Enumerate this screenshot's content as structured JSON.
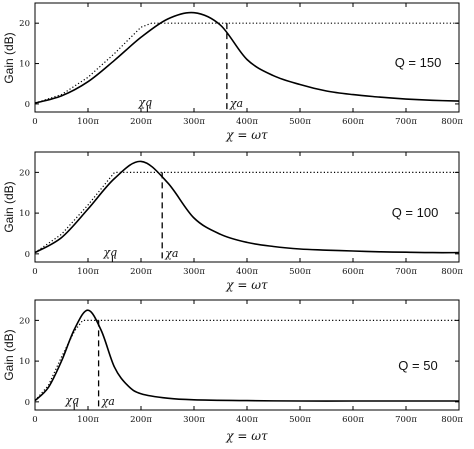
{
  "chart_data": [
    {
      "type": "line",
      "ylabel": "Gain (dB)",
      "xlabel": "χ = ωτ",
      "q_label": "Q = 150",
      "x_ticks": [
        "0",
        "100π",
        "200π",
        "300π",
        "400π",
        "500π",
        "600π",
        "700π",
        "800π"
      ],
      "y_ticks": [
        "0",
        "10",
        "20"
      ],
      "xlim": [
        0,
        800
      ],
      "ylim": [
        -2,
        25
      ],
      "x_unit": "π",
      "chi_q": {
        "label": "χq",
        "x": 212
      },
      "chi_a": {
        "label": "χa",
        "x": 362
      },
      "asymptote_level": 20,
      "series": [
        {
          "style": "solid",
          "x": [
            0,
            50,
            100,
            150,
            200,
            250,
            300,
            350,
            400,
            450,
            500,
            550,
            600,
            650,
            700,
            750,
            800
          ],
          "y": [
            0.2,
            2.0,
            5.5,
            10.8,
            16.5,
            21.0,
            22.6,
            19.5,
            11.0,
            7.0,
            4.8,
            3.2,
            2.3,
            1.7,
            1.2,
            0.9,
            0.7
          ]
        },
        {
          "style": "dotted",
          "x": [
            0,
            50,
            100,
            150,
            200,
            220,
            800
          ],
          "y": [
            0.2,
            2.3,
            6.6,
            12.5,
            19.0,
            20,
            20
          ]
        }
      ]
    },
    {
      "type": "line",
      "ylabel": "Gain (dB)",
      "xlabel": "χ = ωτ",
      "q_label": "Q = 100",
      "x_ticks": [
        "0",
        "100π",
        "200π",
        "300π",
        "400π",
        "500π",
        "600π",
        "700π",
        "800π"
      ],
      "y_ticks": [
        "0",
        "10",
        "20"
      ],
      "xlim": [
        0,
        800
      ],
      "ylim": [
        -2,
        25
      ],
      "x_unit": "π",
      "chi_q": {
        "label": "χq",
        "x": 146
      },
      "chi_a": {
        "label": "χa",
        "x": 240
      },
      "asymptote_level": 20,
      "series": [
        {
          "style": "solid",
          "x": [
            0,
            50,
            100,
            150,
            200,
            250,
            300,
            350,
            400,
            450,
            500,
            550,
            600,
            650,
            700,
            750,
            800
          ],
          "y": [
            0.3,
            4.0,
            11.0,
            18.5,
            22.7,
            17.5,
            8.8,
            4.8,
            2.8,
            1.8,
            1.2,
            0.9,
            0.7,
            0.5,
            0.4,
            0.3,
            0.3
          ]
        },
        {
          "style": "dotted",
          "x": [
            0,
            50,
            100,
            150,
            800
          ],
          "y": [
            0.3,
            4.8,
            12.0,
            20,
            20
          ]
        }
      ]
    },
    {
      "type": "line",
      "ylabel": "Gain (dB)",
      "xlabel": "χ = ωτ",
      "q_label": "Q = 50",
      "x_ticks": [
        "0",
        "100π",
        "200π",
        "300π",
        "400π",
        "500π",
        "600π",
        "700π",
        "800π"
      ],
      "y_ticks": [
        "0",
        "10",
        "20"
      ],
      "xlim": [
        0,
        800
      ],
      "ylim": [
        -2,
        25
      ],
      "x_unit": "π",
      "chi_q": {
        "label": "χq",
        "x": 74
      },
      "chi_a": {
        "label": "χa",
        "x": 120
      },
      "asymptote_level": 20,
      "series": [
        {
          "style": "solid",
          "x": [
            0,
            25,
            50,
            75,
            100,
            125,
            150,
            175,
            200,
            250,
            300,
            400,
            500,
            600,
            700,
            800
          ],
          "y": [
            0.3,
            3.5,
            10.0,
            18.0,
            22.5,
            17.5,
            8.5,
            4.0,
            2.0,
            0.9,
            0.5,
            0.3,
            0.2,
            0.2,
            0.2,
            0.2
          ]
        },
        {
          "style": "dotted",
          "x": [
            0,
            25,
            50,
            75,
            90,
            800
          ],
          "y": [
            0.3,
            4.0,
            11.0,
            17.5,
            20,
            20
          ]
        }
      ]
    }
  ]
}
